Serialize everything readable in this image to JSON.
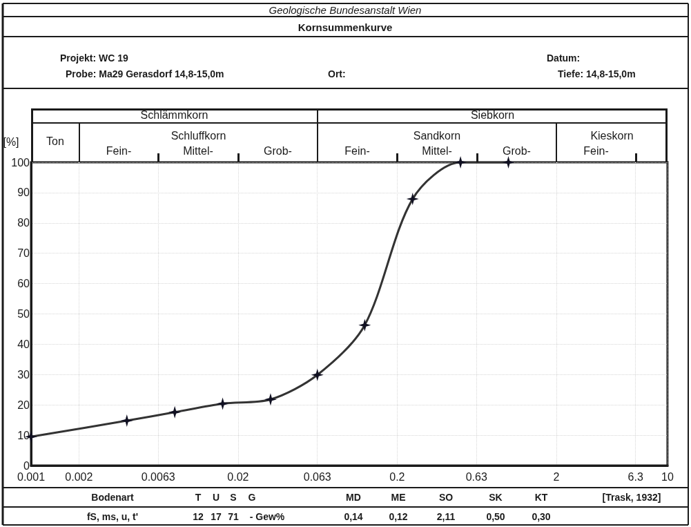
{
  "chart_data": {
    "type": "line",
    "subtitle": "Geologische Bundesanstalt Wien",
    "title": "Kornsummenkurve",
    "ylabel": "[%]",
    "x": [
      0.001,
      0.004,
      0.008,
      0.016,
      0.032,
      0.063,
      0.125,
      0.25,
      0.5,
      1.0
    ],
    "series": [
      {
        "color": "#333333",
        "values": [
          9.5,
          14.8,
          17.6,
          20.4,
          21.8,
          29.9,
          46.3,
          87.9,
          100,
          100
        ]
      }
    ],
    "xlim": [
      0.001,
      10
    ],
    "xticks": [
      0.001,
      0.002,
      0.0063,
      0.02,
      0.063,
      0.2,
      0.63,
      2,
      6.3,
      10
    ],
    "ylim": [
      0,
      100
    ],
    "yticks": [
      0,
      10,
      20,
      30,
      40,
      50,
      60,
      70,
      80,
      90,
      100
    ],
    "log": "x",
    "grid": true,
    "marker": "star",
    "line_style": "solid",
    "annotations": [
      "Projekt: WC 19",
      "Probe: Ma29 Gerasdorf 14,8-15,0m",
      "Ort:",
      "Datum:",
      "Tiefe: 14,8-15,0m",
      "Bodenart",
      "T",
      "U",
      "S",
      "G",
      "MD",
      "ME",
      "SO",
      "SK",
      "KT",
      "[Trask, 1932]",
      "fS, ms, u, t'",
      "12",
      "17",
      "71",
      "- Gew%",
      "0,14",
      "0,12",
      "2,11",
      "0,50",
      "0,30",
      "Schlämmkorn",
      "Siebkorn",
      "Ton",
      "Schluffkorn",
      "Sandkorn",
      "Kieskorn",
      "Fein-",
      "Mittel-",
      "Grob-",
      "Fein-",
      "Mittel-",
      "Grob-",
      "Fein-"
    ]
  }
}
